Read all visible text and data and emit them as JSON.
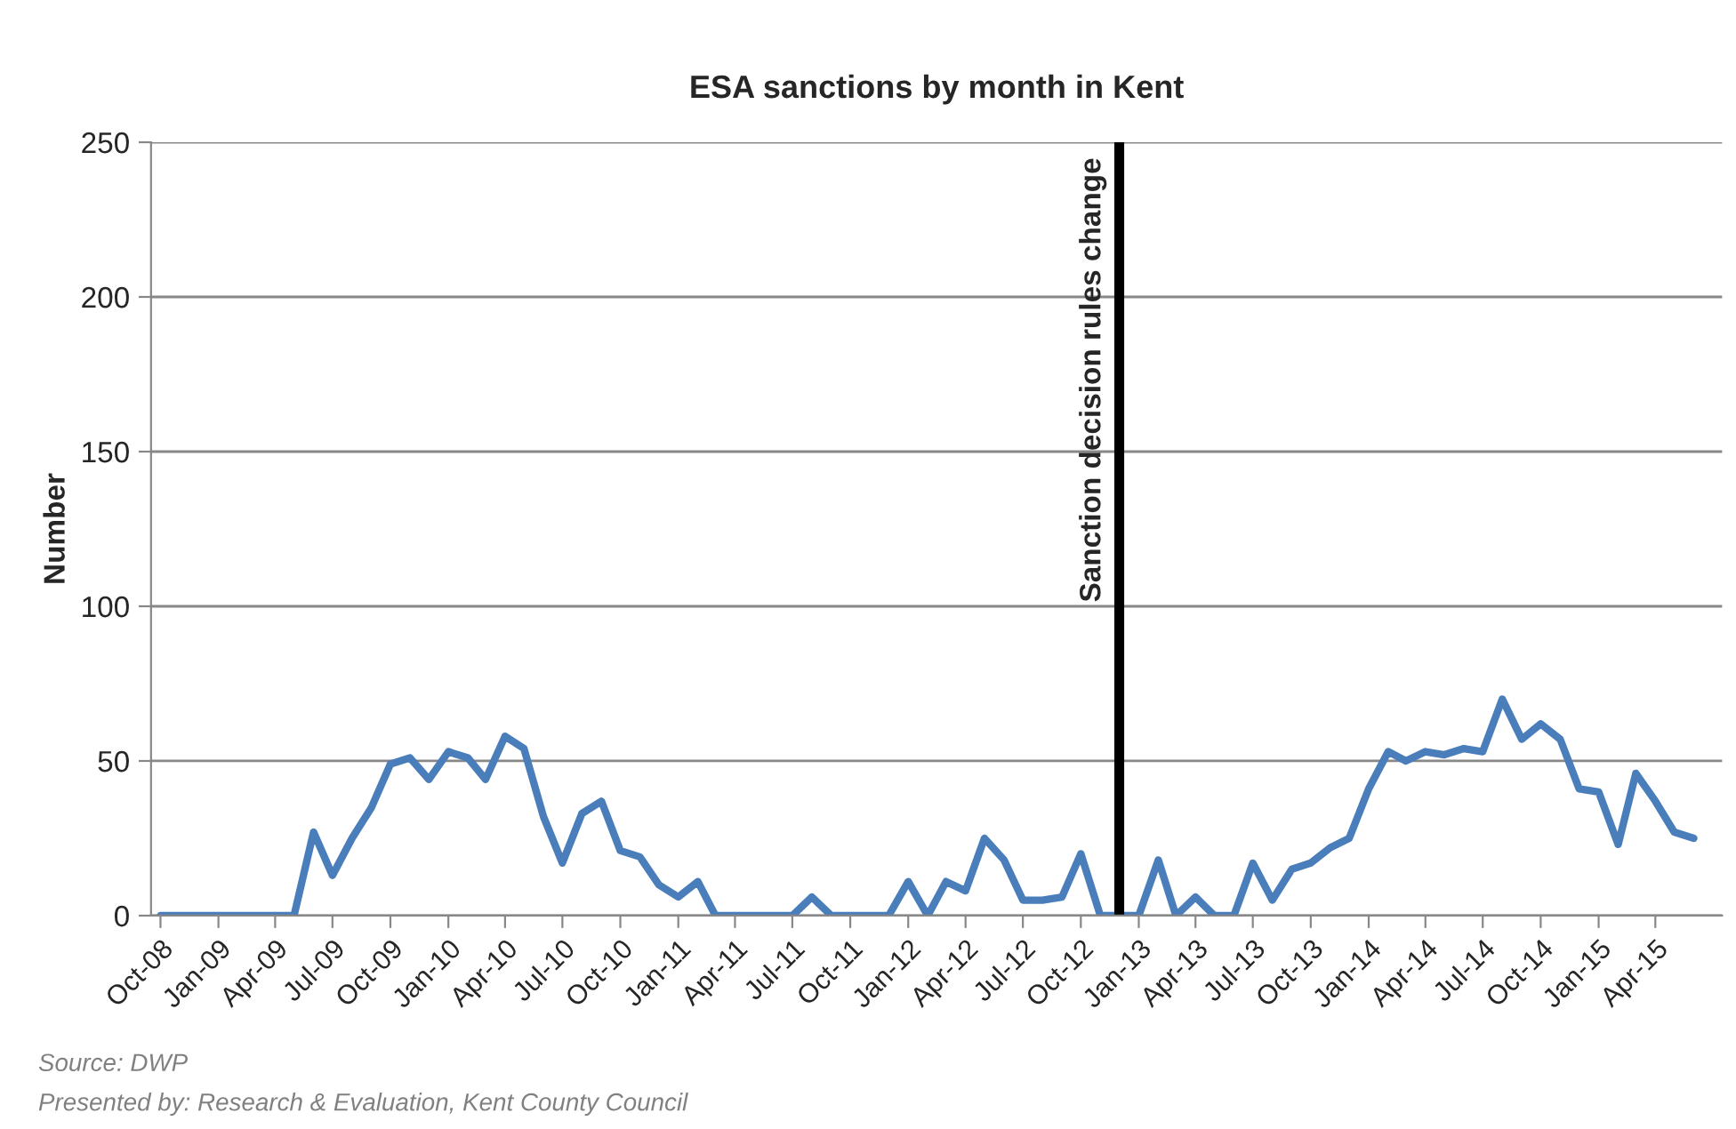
{
  "chart_data": {
    "type": "line",
    "title": "ESA sanctions by month in Kent",
    "ylabel": "Number",
    "x": [
      "2008-10",
      "2008-11",
      "2008-12",
      "2009-01",
      "2009-02",
      "2009-03",
      "2009-04",
      "2009-05",
      "2009-06",
      "2009-07",
      "2009-08",
      "2009-09",
      "2009-10",
      "2009-11",
      "2009-12",
      "2010-01",
      "2010-02",
      "2010-03",
      "2010-04",
      "2010-05",
      "2010-06",
      "2010-07",
      "2010-08",
      "2010-09",
      "2010-10",
      "2010-11",
      "2010-12",
      "2011-01",
      "2011-02",
      "2011-03",
      "2011-04",
      "2011-05",
      "2011-06",
      "2011-07",
      "2011-08",
      "2011-09",
      "2011-10",
      "2011-11",
      "2011-12",
      "2012-01",
      "2012-02",
      "2012-03",
      "2012-04",
      "2012-05",
      "2012-06",
      "2012-07",
      "2012-08",
      "2012-09",
      "2012-10",
      "2012-11",
      "2012-12",
      "2013-01",
      "2013-02",
      "2013-03",
      "2013-04",
      "2013-05",
      "2013-06",
      "2013-07",
      "2013-08",
      "2013-09",
      "2013-10",
      "2013-11",
      "2013-12",
      "2014-01",
      "2014-02",
      "2014-03",
      "2014-04",
      "2014-05",
      "2014-06",
      "2014-07",
      "2014-08",
      "2014-09",
      "2014-10",
      "2014-11",
      "2014-12",
      "2015-01",
      "2015-02",
      "2015-03",
      "2015-04",
      "2015-05",
      "2015-06"
    ],
    "series": [
      {
        "color": "#4a7ebb",
        "values": [
          0,
          0,
          0,
          0,
          0,
          0,
          0,
          0,
          27,
          13,
          25,
          35,
          49,
          51,
          44,
          53,
          51,
          44,
          58,
          54,
          32,
          17,
          33,
          37,
          21,
          19,
          10,
          6,
          11,
          0,
          0,
          0,
          0,
          0,
          6,
          0,
          0,
          0,
          0,
          11,
          0,
          11,
          8,
          25,
          18,
          5,
          5,
          6,
          20,
          0,
          0,
          0,
          18,
          0,
          6,
          0,
          0,
          17,
          5,
          15,
          17,
          22,
          25,
          41,
          53,
          50,
          53,
          52,
          54,
          53,
          70,
          57,
          62,
          57,
          41,
          40,
          23,
          46,
          37,
          27,
          25
        ]
      }
    ],
    "xlim": [
      "2008-09-16",
      "2015-07-16"
    ],
    "xticks": [
      {
        "value": "2008-10",
        "label": "Oct-08"
      },
      {
        "value": "2009-01",
        "label": "Jan-09"
      },
      {
        "value": "2009-04",
        "label": "Apr-09"
      },
      {
        "value": "2009-07",
        "label": "Jul-09"
      },
      {
        "value": "2009-10",
        "label": "Oct-09"
      },
      {
        "value": "2010-01",
        "label": "Jan-10"
      },
      {
        "value": "2010-04",
        "label": "Apr-10"
      },
      {
        "value": "2010-07",
        "label": "Jul-10"
      },
      {
        "value": "2010-10",
        "label": "Oct-10"
      },
      {
        "value": "2011-01",
        "label": "Jan-11"
      },
      {
        "value": "2011-04",
        "label": "Apr-11"
      },
      {
        "value": "2011-07",
        "label": "Jul-11"
      },
      {
        "value": "2011-10",
        "label": "Oct-11"
      },
      {
        "value": "2012-01",
        "label": "Jan-12"
      },
      {
        "value": "2012-04",
        "label": "Apr-12"
      },
      {
        "value": "2012-07",
        "label": "Jul-12"
      },
      {
        "value": "2012-10",
        "label": "Oct-12"
      },
      {
        "value": "2013-01",
        "label": "Jan-13"
      },
      {
        "value": "2013-04",
        "label": "Apr-13"
      },
      {
        "value": "2013-07",
        "label": "Jul-13"
      },
      {
        "value": "2013-10",
        "label": "Oct-13"
      },
      {
        "value": "2014-01",
        "label": "Jan-14"
      },
      {
        "value": "2014-04",
        "label": "Apr-14"
      },
      {
        "value": "2014-07",
        "label": "Jul-14"
      },
      {
        "value": "2014-10",
        "label": "Oct-14"
      },
      {
        "value": "2015-01",
        "label": "Jan-15"
      },
      {
        "value": "2015-04",
        "label": "Apr-15"
      }
    ],
    "ylim": [
      0,
      250
    ],
    "yticks": [
      0,
      50,
      100,
      150,
      200,
      250
    ],
    "grid": "y",
    "legend": false,
    "marker": "none",
    "line_style": "solid",
    "ref_lines": [
      {
        "axis": "x",
        "value": "2012-12",
        "label": "Sanction decision rules change",
        "color": "#000000"
      }
    ],
    "annotations": [
      "Source: DWP",
      "Presented by: Research & Evaluation, Kent County Council"
    ]
  }
}
